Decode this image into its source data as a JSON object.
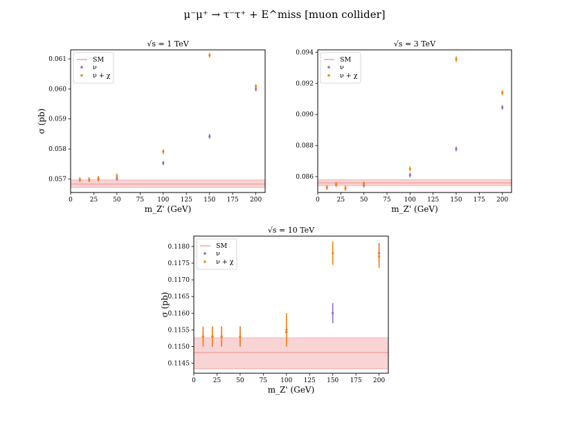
{
  "figure": {
    "title": "μ⁻μ⁺ → τ⁻τ⁺ + E^miss [muon collider]"
  },
  "colors": {
    "sm_line": "#f4a3a0",
    "sm_band": "#f5c5c7",
    "nu": "#9467bd",
    "nu_chi": "#ff7f0e"
  },
  "chart_data": [
    {
      "type": "scatter",
      "title": "√s = 1 TeV",
      "xlabel": "m_Z' (GeV)",
      "ylabel": "σ (pb)",
      "xlim": [
        0,
        210
      ],
      "ylim": [
        0.05655,
        0.0613
      ],
      "xticks": [
        0,
        25,
        50,
        75,
        100,
        125,
        150,
        175,
        200
      ],
      "yticks": [
        0.057,
        0.058,
        0.059,
        0.06,
        0.061
      ],
      "ytick_labels": [
        "0.057",
        "0.058",
        "0.059",
        "0.060",
        "0.061"
      ],
      "sm": {
        "name": "SM",
        "value": 0.05683,
        "band": [
          0.05672,
          0.05697
        ]
      },
      "legend_position": "top-left",
      "series": [
        {
          "name": "ν",
          "color_key": "nu",
          "points": [
            {
              "x": 10,
              "y": 0.05697,
              "err": 7e-05
            },
            {
              "x": 20,
              "y": 0.05697,
              "err": 7e-05
            },
            {
              "x": 30,
              "y": 0.057,
              "err": 7e-05
            },
            {
              "x": 50,
              "y": 0.05702,
              "err": 7e-05
            },
            {
              "x": 100,
              "y": 0.05753,
              "err": 7e-05
            },
            {
              "x": 150,
              "y": 0.05842,
              "err": 8e-05
            },
            {
              "x": 200,
              "y": 0.06,
              "err": 8e-05
            }
          ]
        },
        {
          "name": "ν + χ",
          "color_key": "nu_chi",
          "points": [
            {
              "x": 10,
              "y": 0.05698,
              "err": 8e-05
            },
            {
              "x": 20,
              "y": 0.05698,
              "err": 8e-05
            },
            {
              "x": 30,
              "y": 0.05702,
              "err": 8e-05
            },
            {
              "x": 50,
              "y": 0.0571,
              "err": 8e-05
            },
            {
              "x": 100,
              "y": 0.05791,
              "err": 8e-05
            },
            {
              "x": 150,
              "y": 0.06112,
              "err": 8e-05
            },
            {
              "x": 200,
              "y": 0.06008,
              "err": 8e-05
            }
          ]
        }
      ]
    },
    {
      "type": "scatter",
      "title": "√s = 3 TeV",
      "xlabel": "m_Z' (GeV)",
      "ylabel": "",
      "xlim": [
        0,
        210
      ],
      "ylim": [
        0.08498,
        0.09415
      ],
      "xticks": [
        0,
        25,
        50,
        75,
        100,
        125,
        150,
        175,
        200
      ],
      "yticks": [
        0.086,
        0.088,
        0.09,
        0.092,
        0.094
      ],
      "ytick_labels": [
        "0.086",
        "0.088",
        "0.090",
        "0.092",
        "0.094"
      ],
      "sm": {
        "name": "SM",
        "value": 0.0856,
        "band": [
          0.08542,
          0.0858
        ]
      },
      "legend_position": "top-left",
      "series": [
        {
          "name": "ν",
          "color_key": "nu",
          "points": [
            {
              "x": 10,
              "y": 0.0853,
              "err": 0.00015
            },
            {
              "x": 20,
              "y": 0.0855,
              "err": 0.00015
            },
            {
              "x": 30,
              "y": 0.08525,
              "err": 0.00015
            },
            {
              "x": 50,
              "y": 0.08545,
              "err": 0.00015
            },
            {
              "x": 100,
              "y": 0.0861,
              "err": 0.00015
            },
            {
              "x": 150,
              "y": 0.08778,
              "err": 0.00015
            },
            {
              "x": 200,
              "y": 0.09045,
              "err": 0.00015
            }
          ]
        },
        {
          "name": "ν + χ",
          "color_key": "nu_chi",
          "points": [
            {
              "x": 10,
              "y": 0.0853,
              "err": 0.00015
            },
            {
              "x": 20,
              "y": 0.0855,
              "err": 0.00015
            },
            {
              "x": 30,
              "y": 0.08525,
              "err": 0.00015
            },
            {
              "x": 50,
              "y": 0.08555,
              "err": 0.00015
            },
            {
              "x": 100,
              "y": 0.0865,
              "err": 0.00015
            },
            {
              "x": 150,
              "y": 0.09355,
              "err": 0.00018
            },
            {
              "x": 200,
              "y": 0.0914,
              "err": 0.00015
            }
          ]
        }
      ]
    },
    {
      "type": "scatter",
      "title": "√s = 10 TeV",
      "xlabel": "m_Z' (GeV)",
      "ylabel": "σ (pb)",
      "xlim": [
        0,
        210
      ],
      "ylim": [
        0.1142,
        0.11831
      ],
      "xticks": [
        0,
        25,
        50,
        75,
        100,
        125,
        150,
        175,
        200
      ],
      "yticks": [
        0.1145,
        0.115,
        0.1155,
        0.116,
        0.1165,
        0.117,
        0.1175,
        0.118
      ],
      "ytick_labels": [
        "0.1145",
        "0.1150",
        "0.1155",
        "0.1160",
        "0.1165",
        "0.1170",
        "0.1175",
        "0.1180"
      ],
      "sm": {
        "name": "SM",
        "value": 0.11482,
        "band": [
          0.11433,
          0.11526
        ]
      },
      "legend_position": "top-left",
      "series": [
        {
          "name": "ν",
          "color_key": "nu",
          "points": [
            {
              "x": 10,
              "y": 0.1153,
              "err": 0.0003
            },
            {
              "x": 20,
              "y": 0.1153,
              "err": 0.0003
            },
            {
              "x": 30,
              "y": 0.1153,
              "err": 0.0003
            },
            {
              "x": 50,
              "y": 0.1153,
              "err": 0.0003
            },
            {
              "x": 100,
              "y": 0.11543,
              "err": 0.0003
            },
            {
              "x": 150,
              "y": 0.116,
              "err": 0.0003
            },
            {
              "x": 200,
              "y": 0.1178,
              "err": 0.0003
            }
          ]
        },
        {
          "name": "ν + χ",
          "color_key": "nu_chi",
          "points": [
            {
              "x": 10,
              "y": 0.1153,
              "err": 0.0003
            },
            {
              "x": 20,
              "y": 0.1153,
              "err": 0.0003
            },
            {
              "x": 30,
              "y": 0.1153,
              "err": 0.0003
            },
            {
              "x": 50,
              "y": 0.1153,
              "err": 0.0003
            },
            {
              "x": 100,
              "y": 0.1155,
              "err": 0.0005
            },
            {
              "x": 150,
              "y": 0.1178,
              "err": 0.00035
            },
            {
              "x": 200,
              "y": 0.1177,
              "err": 0.00035
            }
          ]
        }
      ]
    }
  ]
}
